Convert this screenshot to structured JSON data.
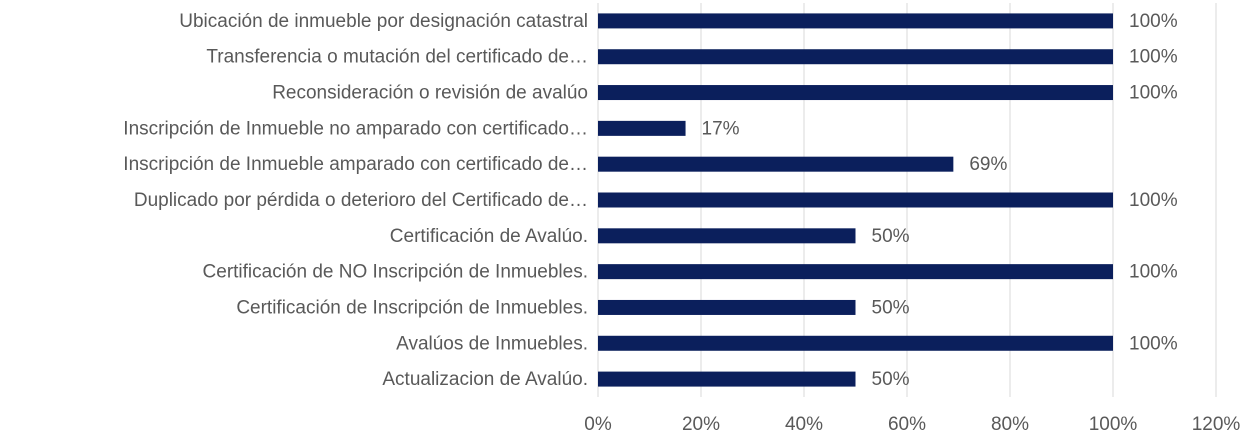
{
  "chart_data": {
    "type": "barh",
    "categories": [
      "Ubicación de inmueble por designación catastral",
      "Transferencia o mutación del certificado de…",
      "Reconsideración o revisión de avalúo",
      "Inscripción  de Inmueble no amparado con certificado…",
      "Inscripción  de Inmueble amparado con certificado de…",
      "Duplicado por pérdida o deterioro del Certificado de…",
      "Certificación de Avalúo.",
      "Certificación  de NO Inscripción de Inmuebles.",
      "Certificación  de  Inscripción de Inmuebles.",
      "Avalúos de Inmuebles.",
      "Actualizacion de Avalúo."
    ],
    "values": [
      100,
      100,
      100,
      17,
      69,
      100,
      50,
      100,
      50,
      100,
      50
    ],
    "value_labels": [
      "100%",
      "100%",
      "100%",
      "17%",
      "69%",
      "100%",
      "50%",
      "100%",
      "50%",
      "100%",
      "50%"
    ],
    "color": "#0b1f5c",
    "xlim": [
      0,
      120
    ],
    "xticks": [
      {
        "value": 0,
        "label": "0%"
      },
      {
        "value": 20,
        "label": "20%"
      },
      {
        "value": 40,
        "label": "40%"
      },
      {
        "value": 60,
        "label": "60%"
      },
      {
        "value": 80,
        "label": "80%"
      },
      {
        "value": 100,
        "label": "100%"
      },
      {
        "value": 120,
        "label": "120%"
      }
    ],
    "grid": true
  }
}
